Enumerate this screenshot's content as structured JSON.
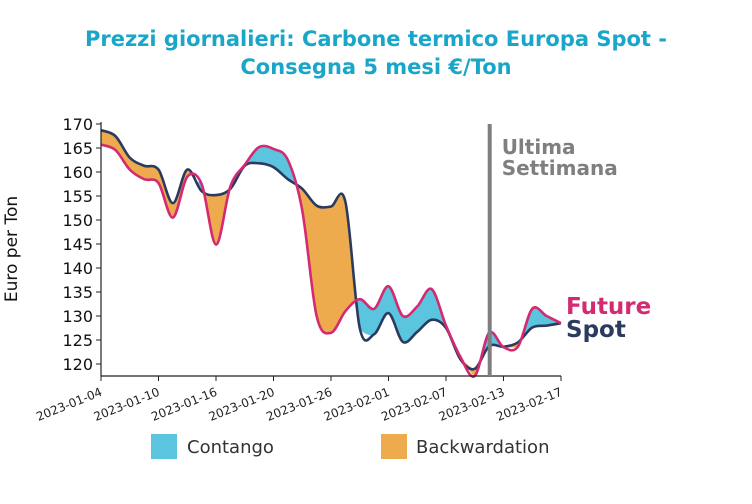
{
  "colors": {
    "title": "#1aa6c8",
    "future": "#d42a72",
    "spot": "#2b3a5f",
    "contango": "#5bc5df",
    "backwardation": "#edab4e",
    "marker": "#7f7f7f"
  },
  "chart_data": {
    "type": "area",
    "title_line1": "Prezzi giornalieri: Carbone termico Europa Spot -",
    "title_line2": "Consegna 5 mesi €/Ton",
    "ylabel": "Euro per Ton",
    "ylim": [
      117.5,
      170
    ],
    "yticks": [
      120,
      125,
      130,
      135,
      140,
      145,
      150,
      155,
      160,
      165,
      170
    ],
    "xlim": [
      "2023-01-04",
      "2023-02-17"
    ],
    "xticks": [
      "2023-01-04",
      "2023-01-10",
      "2023-01-16",
      "2023-01-20",
      "2023-01-26",
      "2023-02-01",
      "2023-02-07",
      "2023-02-13",
      "2023-02-17"
    ],
    "last_week_line": "2023-02-14",
    "annotation": "Ultima\nSettimana",
    "legend": [
      "Contango",
      "Backwardation"
    ],
    "legend_position": "bottom",
    "series": [
      {
        "name": "Future",
        "color": "#d42a72",
        "points": [
          [
            "2023-01-04",
            165.7
          ],
          [
            "2023-01-05",
            164.6
          ],
          [
            "2023-01-06",
            160.5
          ],
          [
            "2023-01-07",
            158.5
          ],
          [
            "2023-01-09",
            157.7
          ],
          [
            "2023-01-10",
            150.5
          ],
          [
            "2023-01-11",
            159.0
          ],
          [
            "2023-01-12",
            157.5
          ],
          [
            "2023-01-13",
            144.9
          ],
          [
            "2023-01-14",
            157.0
          ],
          [
            "2023-01-16",
            161.5
          ],
          [
            "2023-01-17",
            165.2
          ],
          [
            "2023-01-18",
            164.8
          ],
          [
            "2023-01-19",
            162.5
          ],
          [
            "2023-01-20",
            152.0
          ],
          [
            "2023-01-21",
            130.0
          ],
          [
            "2023-01-22",
            126.5
          ],
          [
            "2023-01-23",
            131.0
          ],
          [
            "2023-01-24",
            133.5
          ],
          [
            "2023-01-25",
            131.5
          ],
          [
            "2023-01-26",
            136.2
          ],
          [
            "2023-01-27",
            130.0
          ],
          [
            "2023-01-28",
            132.0
          ],
          [
            "2023-01-29",
            135.6
          ],
          [
            "2023-01-30",
            128.0
          ],
          [
            "2023-01-31",
            121.5
          ],
          [
            "2023-02-01",
            117.5
          ],
          [
            "2023-02-02",
            126.5
          ],
          [
            "2023-02-03",
            123.5
          ],
          [
            "2023-02-04",
            123.6
          ],
          [
            "2023-02-05",
            131.5
          ],
          [
            "2023-02-06",
            130.0
          ],
          [
            "2023-02-07",
            128.5
          ]
        ]
      },
      {
        "name": "Spot",
        "color": "#2b3a5f",
        "points": [
          [
            "2023-01-04",
            168.7
          ],
          [
            "2023-01-05",
            167.5
          ],
          [
            "2023-01-06",
            163.0
          ],
          [
            "2023-01-07",
            161.3
          ],
          [
            "2023-01-09",
            160.5
          ],
          [
            "2023-01-10",
            153.5
          ],
          [
            "2023-01-11",
            160.5
          ],
          [
            "2023-01-12",
            156.0
          ],
          [
            "2023-01-13",
            155.2
          ],
          [
            "2023-01-14",
            156.5
          ],
          [
            "2023-01-16",
            161.3
          ],
          [
            "2023-01-17",
            161.8
          ],
          [
            "2023-01-18",
            161.0
          ],
          [
            "2023-01-19",
            158.5
          ],
          [
            "2023-01-20",
            156.5
          ],
          [
            "2023-01-21",
            153.0
          ],
          [
            "2023-01-22",
            152.8
          ],
          [
            "2023-01-23",
            153.8
          ],
          [
            "2023-01-24",
            127.5
          ],
          [
            "2023-01-25",
            126.2
          ],
          [
            "2023-01-26",
            130.6
          ],
          [
            "2023-01-27",
            124.6
          ],
          [
            "2023-01-28",
            126.7
          ],
          [
            "2023-01-29",
            129.2
          ],
          [
            "2023-01-30",
            127.5
          ],
          [
            "2023-01-31",
            121.0
          ],
          [
            "2023-02-01",
            119.0
          ],
          [
            "2023-02-02",
            123.7
          ],
          [
            "2023-02-03",
            123.6
          ],
          [
            "2023-02-04",
            124.5
          ],
          [
            "2023-02-05",
            127.6
          ],
          [
            "2023-02-06",
            128.0
          ],
          [
            "2023-02-07",
            128.5
          ]
        ]
      }
    ]
  }
}
